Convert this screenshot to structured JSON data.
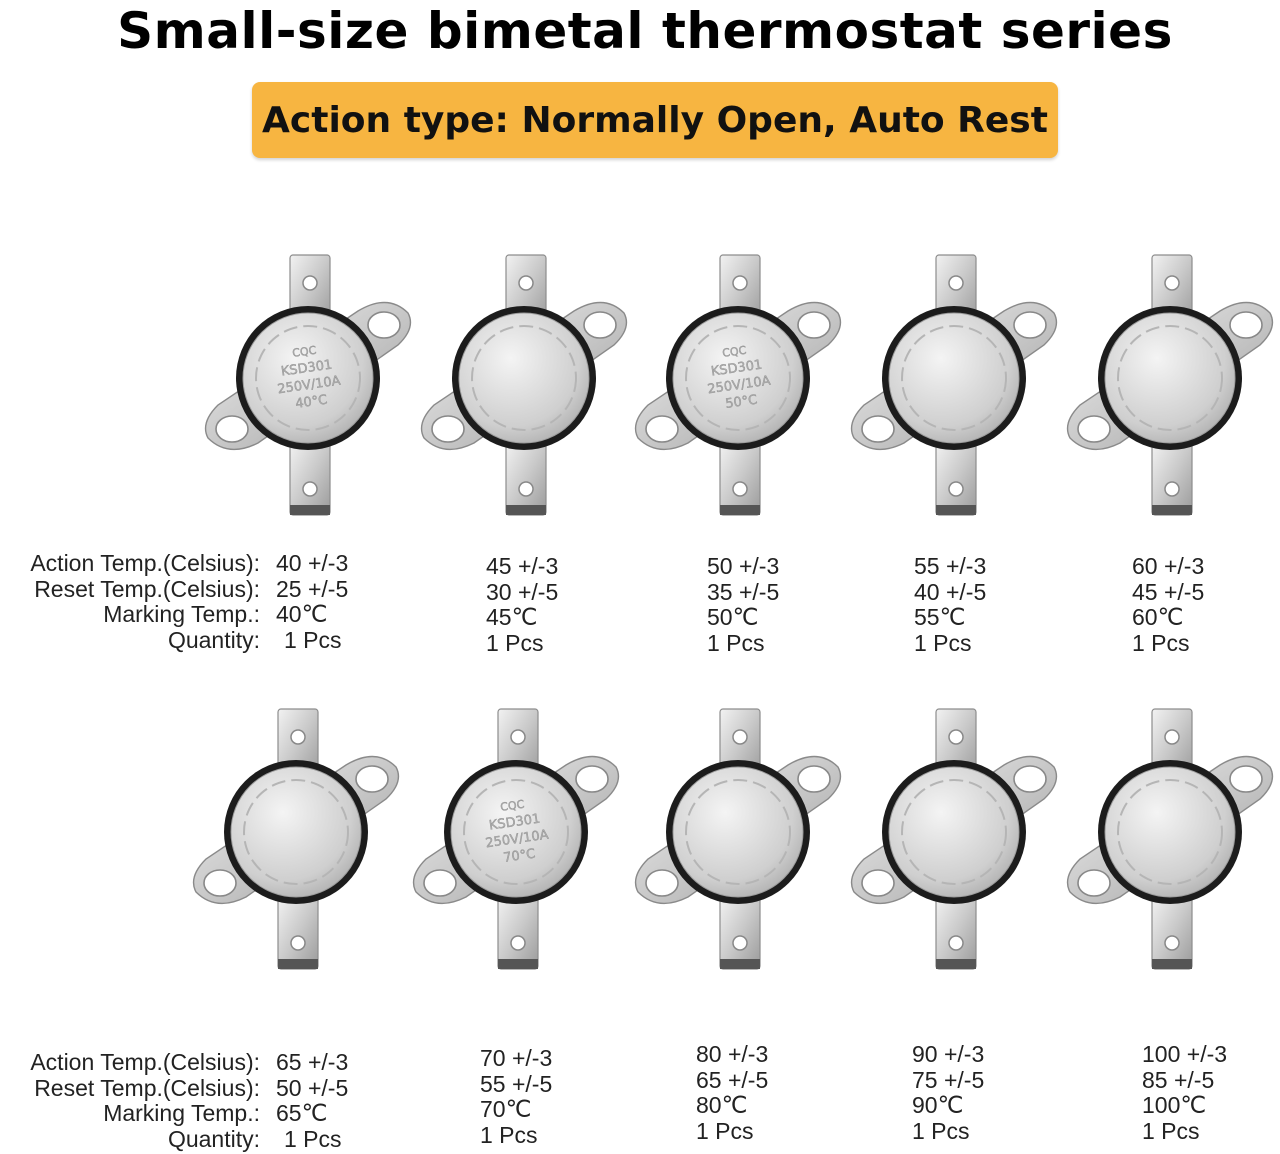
{
  "title": "Small-size bimetal thermostat series",
  "banner": "Action type: Normally Open, Auto Rest",
  "colors": {
    "banner": "#f7b541",
    "metal": "#c9c9c9",
    "ring": "#1c1c1c"
  },
  "labels": {
    "action": "Action Temp.(Celsius):",
    "reset": "Reset  Temp.(Celsius):",
    "marking": "Marking Temp.:",
    "quantity": "Quantity:"
  },
  "devices": [
    {
      "action": "40 +/-3",
      "reset": "25 +/-5",
      "marking": "40℃",
      "quantity": "1 Pcs",
      "face": [
        "CQC",
        "KSD301",
        "250V/10A",
        "40°C"
      ]
    },
    {
      "action": "45 +/-3",
      "reset": "30 +/-5",
      "marking": "45℃",
      "quantity": "1 Pcs",
      "face": []
    },
    {
      "action": "50 +/-3",
      "reset": "35 +/-5",
      "marking": "50℃",
      "quantity": "1 Pcs",
      "face": [
        "CQC",
        "KSD301",
        "250V/10A",
        "50°C"
      ]
    },
    {
      "action": "55 +/-3",
      "reset": "40 +/-5",
      "marking": "55℃",
      "quantity": "1 Pcs",
      "face": []
    },
    {
      "action": "60 +/-3",
      "reset": "45 +/-5",
      "marking": "60℃",
      "quantity": "1 Pcs",
      "face": []
    },
    {
      "action": "65 +/-3",
      "reset": "50 +/-5",
      "marking": "65℃",
      "quantity": "1 Pcs",
      "face": []
    },
    {
      "action": "70 +/-3",
      "reset": "55 +/-5",
      "marking": "70℃",
      "quantity": "1 Pcs",
      "face": [
        "CQC",
        "KSD301",
        "250V/10A",
        "70°C"
      ]
    },
    {
      "action": "80 +/-3",
      "reset": "65 +/-5",
      "marking": "80℃",
      "quantity": "1 Pcs",
      "face": []
    },
    {
      "action": "90 +/-3",
      "reset": "75 +/-5",
      "marking": "90℃",
      "quantity": "1 Pcs",
      "face": []
    },
    {
      "action": "100 +/-3",
      "reset": "85 +/-5",
      "marking": "100℃",
      "quantity": "1 Pcs",
      "face": []
    }
  ]
}
